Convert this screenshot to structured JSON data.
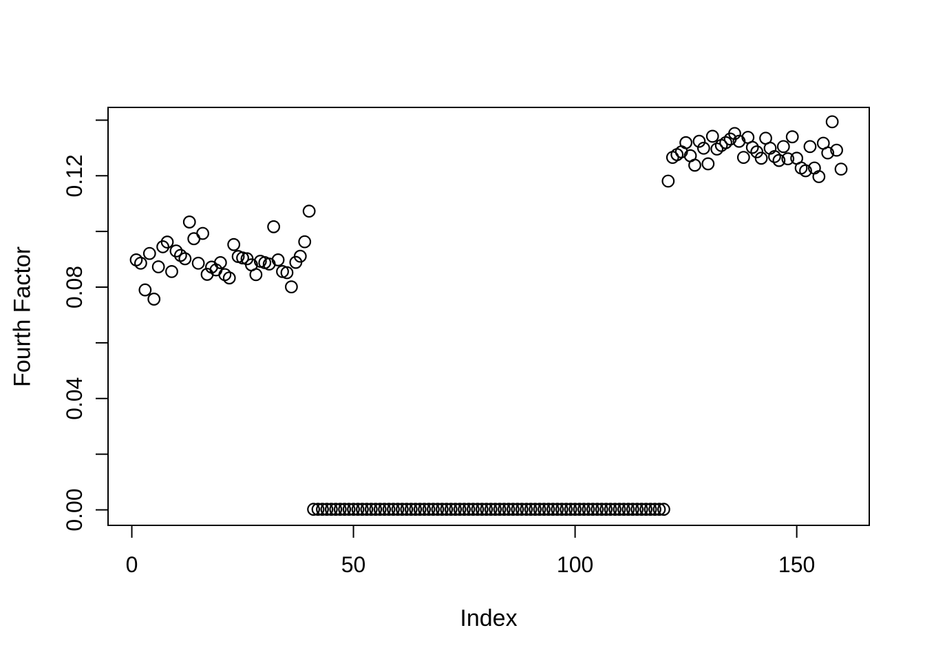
{
  "colors": {
    "foreground": "#000000",
    "background": "#ffffff"
  },
  "chart_data": {
    "type": "scatter",
    "xlabel": "Index",
    "ylabel": "Fourth Factor",
    "marker_symbol": "open-circle",
    "grid": "off",
    "legend": "none",
    "x_range": [
      -5.36,
      166.36
    ],
    "y_range": [
      -0.00556,
      0.14456
    ],
    "x_ticks": {
      "values": [
        0,
        50,
        100,
        150
      ],
      "labels": [
        "0",
        "50",
        "100",
        "150"
      ]
    },
    "y_ticks": {
      "values": [
        0,
        0.02,
        0.04,
        0.06,
        0.08,
        0.1,
        0.12,
        0.14
      ],
      "labels": [
        "0.00",
        "",
        "0.04",
        "",
        "0.08",
        "",
        "0.12",
        ""
      ]
    },
    "x_start": 1,
    "values": [
      0.0898,
      0.0886,
      0.079,
      0.0921,
      0.0757,
      0.0873,
      0.0945,
      0.0962,
      0.0856,
      0.093,
      0.0914,
      0.0902,
      0.1034,
      0.0974,
      0.0886,
      0.0993,
      0.0846,
      0.0872,
      0.0862,
      0.0888,
      0.0845,
      0.0833,
      0.0953,
      0.091,
      0.0905,
      0.0902,
      0.088,
      0.0845,
      0.0893,
      0.0888,
      0.0883,
      0.1017,
      0.0898,
      0.0856,
      0.0852,
      0.0801,
      0.0889,
      0.0911,
      0.0963,
      0.1073,
      0.0002,
      0.0002,
      0.0002,
      0.0002,
      0.0002,
      0.0002,
      0.0002,
      0.0002,
      0.0002,
      0.0002,
      0.0002,
      0.0002,
      0.0002,
      0.0002,
      0.0002,
      0.0002,
      0.0002,
      0.0002,
      0.0002,
      0.0002,
      0.0002,
      0.0002,
      0.0002,
      0.0002,
      0.0002,
      0.0002,
      0.0002,
      0.0002,
      0.0002,
      0.0002,
      0.0002,
      0.0002,
      0.0002,
      0.0002,
      0.0002,
      0.0002,
      0.0002,
      0.0002,
      0.0002,
      0.0002,
      0.0002,
      0.0002,
      0.0002,
      0.0002,
      0.0002,
      0.0002,
      0.0002,
      0.0002,
      0.0002,
      0.0002,
      0.0002,
      0.0002,
      0.0002,
      0.0002,
      0.0002,
      0.0002,
      0.0002,
      0.0002,
      0.0002,
      0.0002,
      0.0002,
      0.0002,
      0.0002,
      0.0002,
      0.0002,
      0.0002,
      0.0002,
      0.0002,
      0.0002,
      0.0002,
      0.0002,
      0.0002,
      0.0002,
      0.0002,
      0.0002,
      0.0002,
      0.0002,
      0.0002,
      0.0002,
      0.0002,
      0.1181,
      0.1266,
      0.1276,
      0.1286,
      0.1319,
      0.1272,
      0.1238,
      0.1324,
      0.1299,
      0.1243,
      0.1342,
      0.1296,
      0.1309,
      0.1319,
      0.1332,
      0.1352,
      0.1324,
      0.1266,
      0.1338,
      0.1302,
      0.1286,
      0.1263,
      0.1335,
      0.1299,
      0.1269,
      0.1255,
      0.1305,
      0.1261,
      0.134,
      0.1263,
      0.1228,
      0.1218,
      0.1305,
      0.1228,
      0.1197,
      0.1317,
      0.1282,
      0.1394,
      0.1292,
      0.1224
    ]
  }
}
